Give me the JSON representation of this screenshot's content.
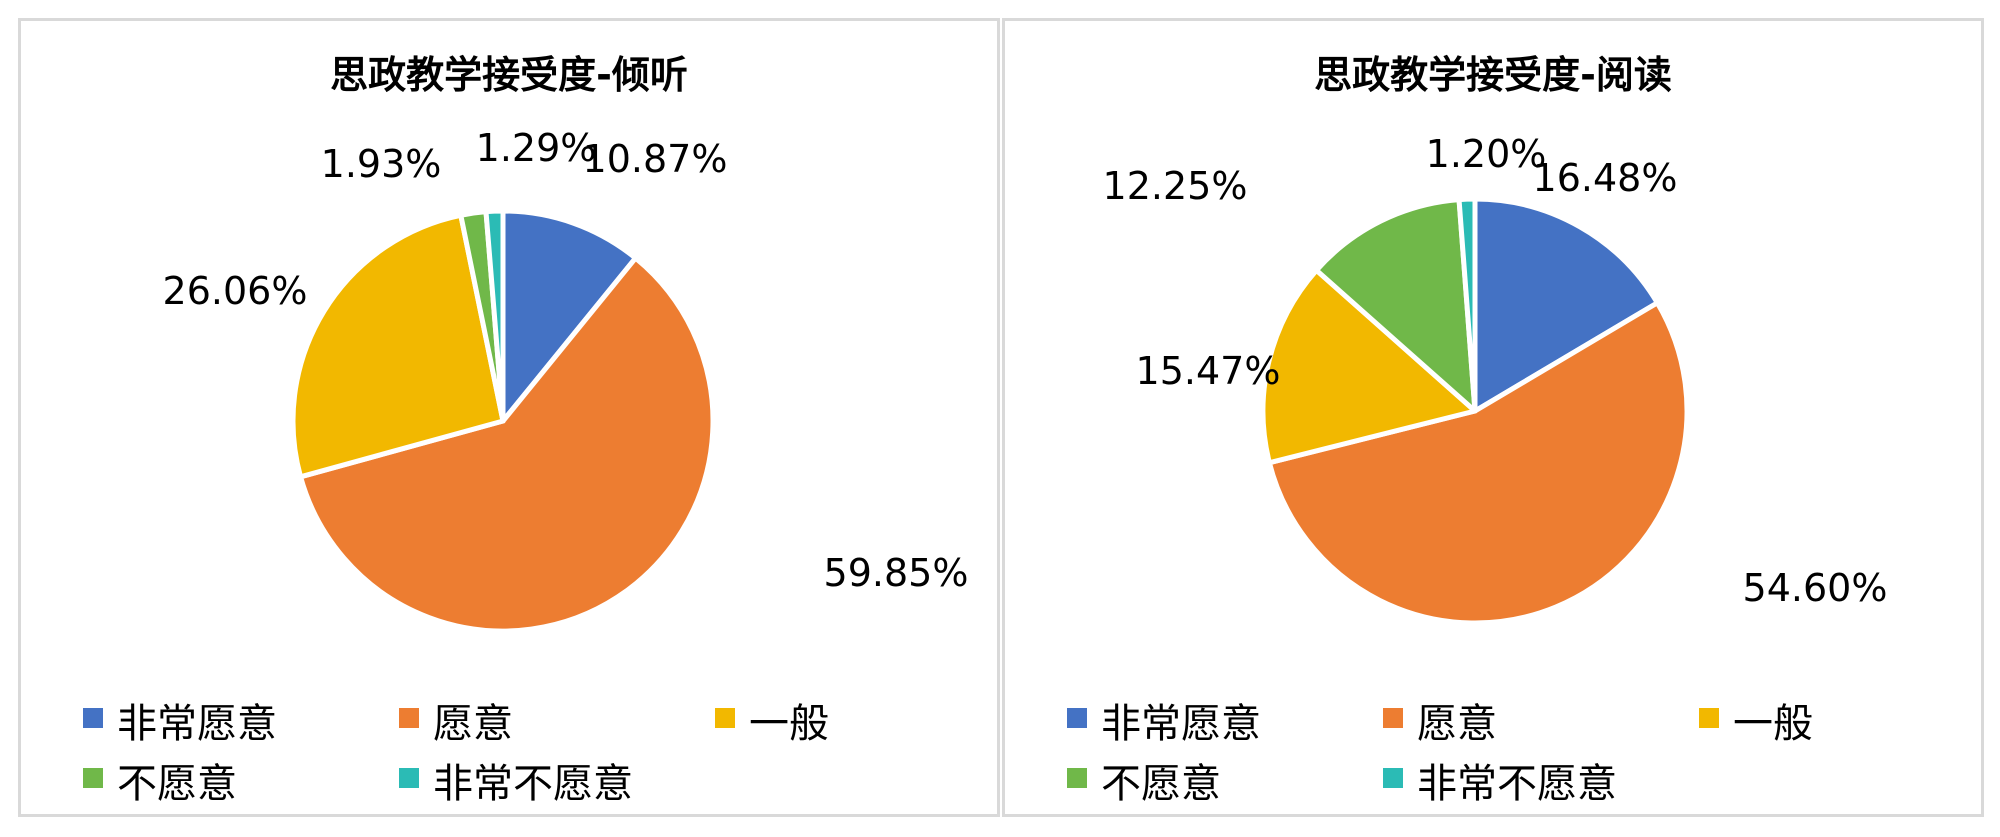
{
  "chart_data": [
    {
      "type": "pie",
      "title": "思政教学接受度-倾听",
      "categories": [
        "非常愿意",
        "愿意",
        "一般",
        "不愿意",
        "非常不愿意"
      ],
      "values": [
        10.87,
        59.85,
        26.06,
        1.93,
        1.29
      ],
      "labels": [
        "10.87%",
        "59.85%",
        "26.06%",
        "1.93%",
        "1.29%"
      ],
      "colors": [
        "#4472C4",
        "#ED7D31",
        "#F2B800",
        "#70B849",
        "#2BBBB5"
      ],
      "legend": "bottom"
    },
    {
      "type": "pie",
      "title": "思政教学接受度-阅读",
      "categories": [
        "非常愿意",
        "愿意",
        "一般",
        "不愿意",
        "非常不愿意"
      ],
      "values": [
        16.48,
        54.6,
        15.47,
        12.25,
        1.2
      ],
      "labels": [
        "16.48%",
        "54.60%",
        "15.47%",
        "12.25%",
        "1.20%"
      ],
      "colors": [
        "#4472C4",
        "#ED7D31",
        "#F2B800",
        "#70B849",
        "#2BBBB5"
      ],
      "legend": "bottom"
    }
  ]
}
